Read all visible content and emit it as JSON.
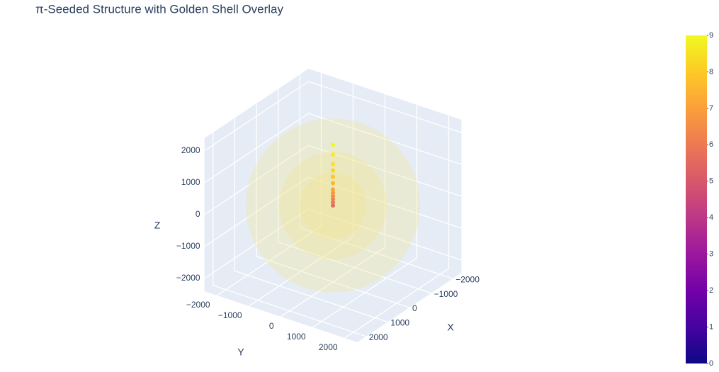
{
  "chart_data": {
    "type": "scatter3d",
    "title": "π-Seeded Structure with Golden Shell Overlay",
    "x_label": "X",
    "y_label": "Y",
    "z_label": "Z",
    "xlim": [
      -2400,
      2400
    ],
    "ylim": [
      -2400,
      2400
    ],
    "zlim": [
      -2400,
      2400
    ],
    "xticks": [
      {
        "value": -2000,
        "label": "−2000"
      },
      {
        "value": -1000,
        "label": "−1000"
      },
      0,
      1000,
      2000
    ],
    "yticks": [
      {
        "value": -2000,
        "label": "−2000"
      },
      {
        "value": -1000,
        "label": "−1000"
      },
      0,
      1000,
      2000
    ],
    "zticks": [
      {
        "value": -2000,
        "label": "−2000"
      },
      {
        "value": -1000,
        "label": "−1000"
      },
      0,
      1000,
      2000
    ],
    "points": {
      "x": [
        0,
        0,
        0,
        0,
        0,
        0,
        0,
        0,
        0,
        0,
        0,
        0
      ],
      "y": [
        0,
        0,
        0,
        0,
        0,
        0,
        0,
        0,
        0,
        0,
        0,
        0
      ],
      "z": [
        0,
        100,
        200,
        300,
        400,
        500,
        700,
        900,
        1100,
        1300,
        1600,
        1900
      ],
      "color": [
        5.6,
        5.9,
        6.2,
        6.5,
        6.8,
        7.1,
        7.5,
        7.9,
        8.2,
        8.5,
        8.8,
        9
      ]
    },
    "shells": {
      "radii": [
        2618,
        1618,
        1000
      ],
      "color": "#f2e48c"
    },
    "colorbar": {
      "cmin": 0,
      "cmax": 9,
      "ticks": [
        0,
        1,
        2,
        3,
        4,
        5,
        6,
        7,
        8,
        9
      ],
      "colorscale": [
        "#0d0887",
        "#46039f",
        "#7201a8",
        "#9c179e",
        "#bd3786",
        "#d8576b",
        "#ed7953",
        "#fb9f3a",
        "#fdca26",
        "#f0f921"
      ]
    }
  }
}
